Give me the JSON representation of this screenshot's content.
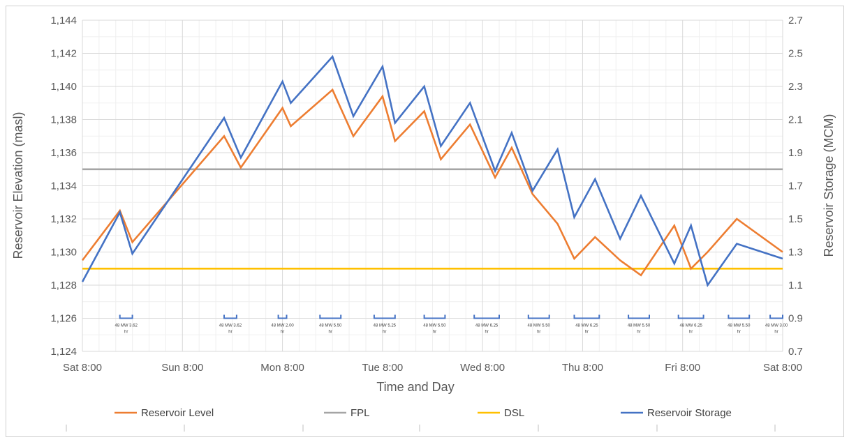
{
  "chart_data": {
    "type": "line",
    "xlabel": "Time and Day",
    "ylabel_left": "Reservoir Elevation (masl)",
    "ylabel_right": "Reservoir Storage (MCM)",
    "x_ticks": [
      "Sat 8:00",
      "Sun 8:00",
      "Mon 8:00",
      "Tue 8:00",
      "Wed 8:00",
      "Thu 8:00",
      "Fri 8:00",
      "Sat 8:00"
    ],
    "x_unit": "hours from Sat 8:00",
    "xlim": [
      0,
      168
    ],
    "ylim_left": [
      1124,
      1144
    ],
    "yticks_left": [
      "1,124",
      "1,126",
      "1,128",
      "1,130",
      "1,132",
      "1,134",
      "1,136",
      "1,138",
      "1,140",
      "1,142",
      "1,144"
    ],
    "ylim_right": [
      0.7,
      2.7
    ],
    "yticks_right": [
      "0.7",
      "0.9",
      "1.1",
      "1.3",
      "1.5",
      "1.7",
      "1.9",
      "2.1",
      "2.3",
      "2.5",
      "2.7"
    ],
    "grid": true,
    "legend_position": "bottom",
    "series": [
      {
        "name": "Reservoir Level",
        "axis": "left",
        "color": "#ED7D31",
        "x": [
          0,
          9,
          12,
          34,
          38,
          48,
          50,
          60,
          65,
          72,
          75,
          82,
          86,
          93,
          99,
          103,
          108,
          114,
          118,
          123,
          129,
          134,
          142,
          146,
          150,
          157,
          168
        ],
        "y": [
          1129.5,
          1132.5,
          1130.6,
          1137.0,
          1135.1,
          1138.7,
          1137.6,
          1139.8,
          1137.0,
          1139.4,
          1136.7,
          1138.5,
          1135.6,
          1137.7,
          1134.5,
          1136.3,
          1133.5,
          1131.7,
          1129.6,
          1130.9,
          1129.5,
          1128.6,
          1131.6,
          1129.0,
          1130.0,
          1132.0,
          1130.0
        ]
      },
      {
        "name": "FPL",
        "axis": "left",
        "color": "#A5A5A5",
        "x": [
          0,
          168
        ],
        "y": [
          1135.0,
          1135.0
        ]
      },
      {
        "name": "DSL",
        "axis": "left",
        "color": "#FFC000",
        "x": [
          0,
          168
        ],
        "y": [
          1129.0,
          1129.0
        ]
      },
      {
        "name": "Reservoir Storage",
        "axis": "right",
        "color": "#4472C4",
        "x": [
          0,
          9,
          12,
          34,
          38,
          48,
          50,
          60,
          65,
          72,
          75,
          82,
          86,
          93,
          99,
          103,
          108,
          114,
          118,
          123,
          129,
          134,
          142,
          146,
          150,
          157,
          168
        ],
        "y": [
          1.12,
          1.54,
          1.29,
          2.11,
          1.87,
          2.33,
          2.2,
          2.48,
          2.12,
          2.42,
          2.08,
          2.3,
          1.94,
          2.2,
          1.79,
          2.02,
          1.67,
          1.92,
          1.51,
          1.74,
          1.38,
          1.64,
          1.23,
          1.46,
          1.1,
          1.35,
          1.26
        ]
      }
    ],
    "annotations": [
      {
        "line1": "48 MW 3.62",
        "line2": "hr",
        "x_start": 9,
        "x_end": 12
      },
      {
        "line1": "48 MW 3.62",
        "line2": "hr",
        "x_start": 34,
        "x_end": 37
      },
      {
        "line1": "48 MW 2.00",
        "line2": "hr",
        "x_start": 47,
        "x_end": 49
      },
      {
        "line1": "48 MW 5.50",
        "line2": "hr",
        "x_start": 57,
        "x_end": 62
      },
      {
        "line1": "48 MW 5.25",
        "line2": "hr",
        "x_start": 70,
        "x_end": 75
      },
      {
        "line1": "48 MW 5.50",
        "line2": "hr",
        "x_start": 82,
        "x_end": 87
      },
      {
        "line1": "48 MW 6.25",
        "line2": "hr",
        "x_start": 94,
        "x_end": 100
      },
      {
        "line1": "48 MW 5.50",
        "line2": "hr",
        "x_start": 107,
        "x_end": 112
      },
      {
        "line1": "48 MW 6.25",
        "line2": "hr",
        "x_start": 118,
        "x_end": 124
      },
      {
        "line1": "48 MW 5.50",
        "line2": "hr",
        "x_start": 131,
        "x_end": 136
      },
      {
        "line1": "48 MW 6.25",
        "line2": "hr",
        "x_start": 143,
        "x_end": 149
      },
      {
        "line1": "48 MW 5.50",
        "line2": "hr",
        "x_start": 155,
        "x_end": 160
      },
      {
        "line1": "48 MW 3.00",
        "line2": "hr",
        "x_start": 165,
        "x_end": 168
      }
    ]
  }
}
